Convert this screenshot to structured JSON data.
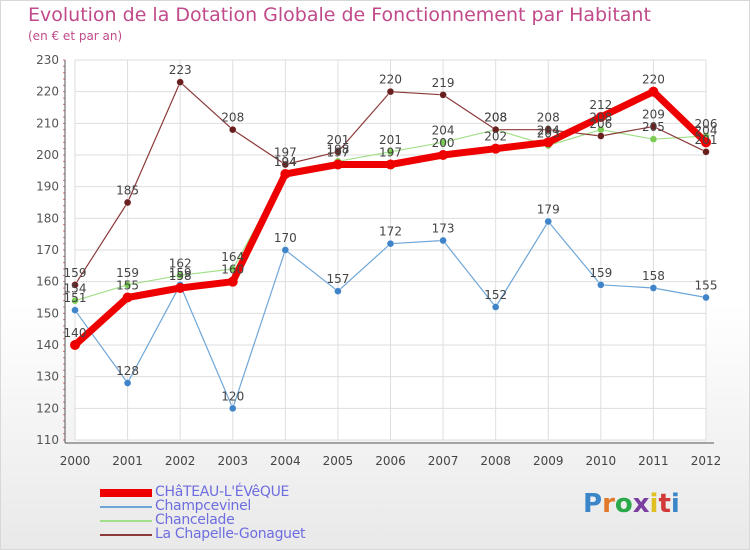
{
  "header": {
    "title": "Evolution de la Dotation Globale de Fonctionnement par Habitant",
    "subtitle": "(en € et par an)"
  },
  "brand": {
    "name": "Proxiti",
    "letters": [
      "P",
      "r",
      "o",
      "x",
      "i",
      "t",
      "i"
    ],
    "letter_colors": [
      "#3a86c8",
      "#e07a2a",
      "#2ba84a",
      "#7b3fa0",
      "#e0c020",
      "#d23a3a",
      "#3a86c8"
    ]
  },
  "chart_data": {
    "type": "line",
    "title": "Evolution de la Dotation Globale de Fonctionnement par Habitant",
    "subtitle": "(en € et par an)",
    "xlabel": "",
    "ylabel": "",
    "x": [
      2000,
      2001,
      2002,
      2003,
      2004,
      2005,
      2006,
      2007,
      2008,
      2009,
      2010,
      2011,
      2012
    ],
    "x_tick_labels": [
      "2000",
      "2001",
      "2002",
      "2003",
      "2004",
      "2005",
      "2006",
      "2007",
      "2008",
      "2009",
      "2010",
      "2011",
      "2012"
    ],
    "ylim": [
      110,
      230
    ],
    "y_ticks": [
      110,
      120,
      130,
      140,
      150,
      160,
      170,
      180,
      190,
      200,
      210,
      220,
      230
    ],
    "grid": true,
    "legend_position": "bottom-left",
    "series": [
      {
        "name": "CHâTEAU-L'ÉVêQUE",
        "values": [
          140,
          155,
          158,
          160,
          194,
          197,
          197,
          200,
          202,
          204,
          212,
          220,
          204
        ],
        "labels": [
          "140",
          "155",
          "158",
          "160",
          "194",
          "197",
          "197",
          "200",
          "202",
          "204",
          "212",
          "220",
          "204"
        ],
        "color": "#ee0000",
        "marker_color": "#ee0000"
      },
      {
        "name": "Champcevinel",
        "values": [
          151,
          128,
          159,
          120,
          170,
          157,
          172,
          173,
          152,
          179,
          159,
          158,
          155
        ],
        "labels": [
          "151",
          "128",
          "159",
          "120",
          "170",
          "157",
          "172",
          "173",
          "152",
          "179",
          "159",
          "158",
          "155"
        ],
        "color": "#6fa6d8",
        "marker_color": "#3f84c8"
      },
      {
        "name": "Chancelade",
        "values": [
          154,
          159,
          162,
          164,
          194,
          198,
          201,
          204,
          208,
          203,
          208,
          205,
          206
        ],
        "labels": [
          "154",
          "159",
          "162",
          "164",
          "194",
          "198",
          "201",
          "204",
          "208",
          "203",
          "208",
          "205",
          "206"
        ],
        "color": "#a3e08a",
        "marker_color": "#7acc55"
      },
      {
        "name": "La Chapelle-Gonaguet",
        "values": [
          159,
          185,
          223,
          208,
          197,
          201,
          220,
          219,
          208,
          208,
          206,
          209,
          201
        ],
        "labels": [
          "159",
          "185",
          "223",
          "208",
          "197",
          "201",
          "220",
          "219",
          "208",
          "208",
          "206",
          "209",
          "201"
        ],
        "color": "#8c3a3a",
        "marker_color": "#6a1f1f"
      }
    ]
  }
}
